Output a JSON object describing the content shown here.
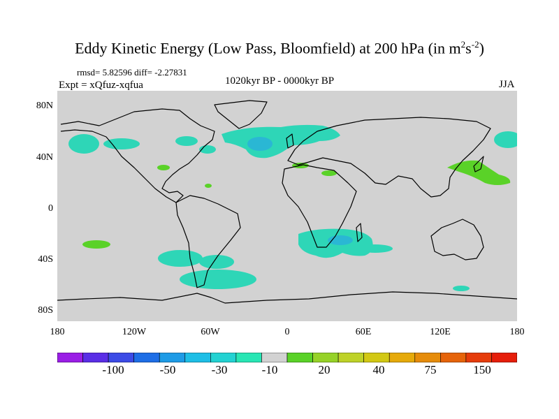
{
  "title": {
    "main": "Eddy Kinetic Energy (Low Pass, Bloomfield) at 200 hPa (in m",
    "sup1": "2",
    "mid": "s",
    "sup2": "-2",
    "end": ")"
  },
  "stats": "rmsd= 5.82596  diff= -2.27831",
  "expt": "Expt = xQfuz-xqfua",
  "period": "1020kyr BP - 0000kyr BP",
  "season": "JJA",
  "lat_labels": [
    "80N",
    "40N",
    "0",
    "40S",
    "80S"
  ],
  "lon_labels": [
    "180",
    "120W",
    "60W",
    "0",
    "60E",
    "120E",
    "180"
  ],
  "legend": {
    "colors": [
      "#9a1ee6",
      "#5a2ee6",
      "#3c4be6",
      "#1e6ee6",
      "#1e9be6",
      "#1ebee6",
      "#23d2d2",
      "#28e6b4",
      "#d2d2d2",
      "#5ad228",
      "#96d228",
      "#bed228",
      "#d2c814",
      "#e6aa0a",
      "#e68c0a",
      "#e6640a",
      "#e63c0a",
      "#e61e0a"
    ],
    "labels": [
      "-100",
      "-50",
      "-30",
      "-10",
      "20",
      "40",
      "75",
      "150"
    ]
  },
  "anomaly_colors": {
    "negative": "#2ed6b7",
    "negative_strong": "#2ab7d4",
    "positive": "#5ad228",
    "land_ocean": "#d2d2d2"
  }
}
